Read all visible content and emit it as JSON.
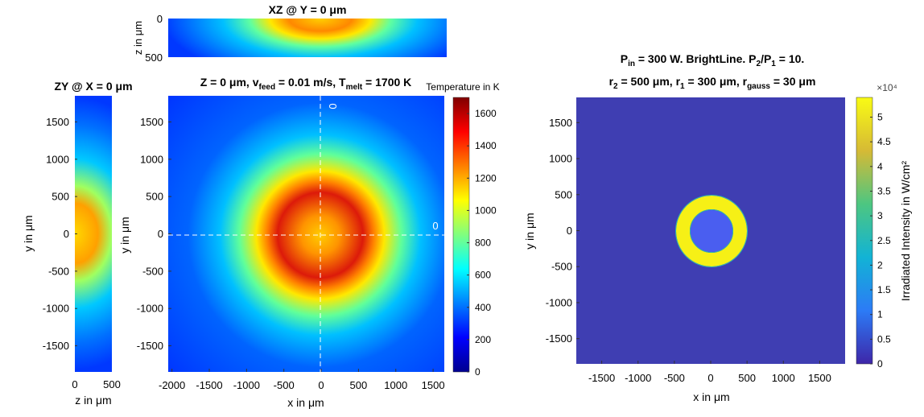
{
  "chart_data": [
    {
      "type": "heatmap",
      "title": "XZ @ Y = 0 μm",
      "xlabel": "",
      "ylabel": "z in μm",
      "yticks": [
        "0",
        "500"
      ]
    },
    {
      "type": "heatmap",
      "title": "ZY @ X = 0 μm",
      "xlabel": "z in μm",
      "ylabel": "y in μm",
      "xticks": [
        "0",
        "500"
      ],
      "yticks": [
        "1500",
        "1000",
        "500",
        "0",
        "-500",
        "-1000",
        "-1500"
      ]
    },
    {
      "type": "heatmap",
      "title": {
        "p1": "Z = 0 μm, v",
        "p1sub": "feed",
        "p2": " = 0.01 m/s, T",
        "p2sub": "melt",
        "p3": " = 1700 K"
      },
      "xlabel": "x in μm",
      "ylabel": "y in μm",
      "xticks": [
        "-2000",
        "-1500",
        "-1000",
        "-500",
        "0",
        "500",
        "1000",
        "1500"
      ],
      "yticks": [
        "1500",
        "1000",
        "500",
        "0",
        "-500",
        "-1000",
        "-1500"
      ],
      "xlim": [
        -2050,
        1650
      ],
      "ylim": [
        -1850,
        1850
      ],
      "hot_ring": {
        "center": [
          0,
          0
        ],
        "inner_radius_um": 300,
        "outer_radius_um": 500,
        "peak_K": 1650
      },
      "line_labels": [
        "0",
        "0"
      ],
      "colorbar": {
        "label": "Temperature in K",
        "ticks": [
          "0",
          "200",
          "400",
          "600",
          "800",
          "1000",
          "1200",
          "1400",
          "1600"
        ],
        "range": [
          0,
          1700
        ],
        "colormap": "jet"
      }
    },
    {
      "type": "heatmap",
      "title_line1": {
        "p1": "P",
        "p1sub": "in",
        "p2": " = 300 W. BrightLine. P",
        "p2sub": "2",
        "p3": "/P",
        "p3sub": "1",
        "p4": " = 10."
      },
      "title_line2": {
        "p1": "r",
        "p1sub": "2",
        "p2": " = 500 μm, r",
        "p2sub": "1",
        "p3": " = 300 μm, r",
        "p3sub": "gauss",
        "p4": " = 30 μm"
      },
      "xlabel": "x in μm",
      "ylabel": "y in μm",
      "xticks": [
        "-1500",
        "-1000",
        "-500",
        "0",
        "500",
        "1000",
        "1500"
      ],
      "yticks": [
        "1500",
        "1000",
        "500",
        "0",
        "-500",
        "-1000",
        "-1500"
      ],
      "xlim": [
        -1850,
        1850
      ],
      "ylim": [
        -1850,
        1850
      ],
      "ring": {
        "inner_radius_um": 300,
        "outer_radius_um": 500,
        "inner_value": 0.5,
        "outer_value": 5.3
      },
      "colorbar": {
        "label": "Irradiated Intensity in W/cm²",
        "exponent": "×10⁴",
        "ticks": [
          "0",
          "0.5",
          "1",
          "1.5",
          "2",
          "2.5",
          "3",
          "3.5",
          "4",
          "4.5",
          "5"
        ],
        "range": [
          0,
          5.4
        ],
        "colormap": "parula"
      }
    }
  ]
}
